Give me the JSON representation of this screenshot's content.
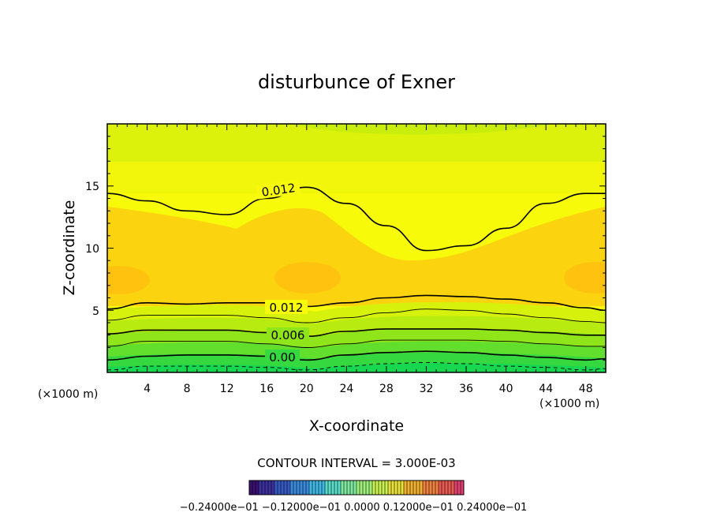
{
  "chart_data": {
    "type": "contour",
    "title": "disturbunce of Exner",
    "xlabel": "X-coordinate",
    "ylabel": "Z-coordinate",
    "x_unit": "(×1000 m)",
    "xlim": [
      0,
      50
    ],
    "ylim": [
      0,
      20
    ],
    "x_ticks": [
      "4",
      "8",
      "12",
      "16",
      "20",
      "24",
      "28",
      "32",
      "36",
      "40",
      "44",
      "48"
    ],
    "y_ticks": [
      "5",
      "10",
      "15"
    ],
    "contour_interval_text": "CONTOUR INTERVAL = 3.000E-03",
    "contour_labels": [
      "0.012",
      "0.012",
      "0.006",
      "0.00"
    ],
    "colorbar_labels_text": "−0.24000e−01    −0.12000e−01    0.0000    0.12000e−01    0.24000e−01",
    "contours": [
      {
        "level": 0.012,
        "x": [
          0,
          4,
          8,
          12,
          16,
          20,
          24,
          28,
          32,
          36,
          40,
          44,
          48,
          50
        ],
        "y": [
          14.4,
          13.8,
          13.0,
          12.7,
          14.0,
          14.9,
          13.6,
          11.8,
          9.8,
          10.2,
          11.6,
          13.6,
          14.4,
          14.4
        ]
      },
      {
        "level": 0.012,
        "x": [
          0,
          4,
          8,
          12,
          16,
          20,
          24,
          28,
          32,
          36,
          40,
          44,
          48,
          50
        ],
        "y": [
          5.1,
          5.6,
          5.5,
          5.6,
          5.6,
          5.3,
          5.6,
          6.0,
          6.2,
          6.1,
          5.9,
          5.6,
          5.2,
          5.0
        ]
      },
      {
        "level": 0.009,
        "x": [
          0,
          4,
          8,
          12,
          16,
          20,
          24,
          28,
          32,
          36,
          40,
          44,
          48,
          50
        ],
        "y": [
          4.2,
          4.6,
          4.6,
          4.6,
          4.4,
          4.0,
          4.4,
          4.8,
          5.1,
          5.0,
          4.7,
          4.4,
          4.1,
          4.0
        ]
      },
      {
        "level": 0.006,
        "x": [
          0,
          4,
          8,
          12,
          16,
          20,
          24,
          28,
          32,
          36,
          40,
          44,
          48,
          50
        ],
        "y": [
          3.1,
          3.4,
          3.4,
          3.4,
          3.2,
          2.9,
          3.3,
          3.5,
          3.5,
          3.5,
          3.4,
          3.2,
          3.0,
          3.0
        ]
      },
      {
        "level": 0.003,
        "x": [
          0,
          4,
          8,
          12,
          16,
          20,
          24,
          28,
          32,
          36,
          40,
          44,
          48,
          50
        ],
        "y": [
          2.1,
          2.5,
          2.5,
          2.5,
          2.3,
          2.0,
          2.3,
          2.6,
          2.6,
          2.6,
          2.5,
          2.3,
          2.1,
          2.1
        ]
      },
      {
        "level": 0.0,
        "x": [
          0,
          4,
          8,
          12,
          16,
          20,
          24,
          28,
          32,
          36,
          40,
          44,
          48,
          50
        ],
        "y": [
          1.0,
          1.3,
          1.4,
          1.4,
          1.3,
          1.0,
          1.4,
          1.6,
          1.7,
          1.6,
          1.4,
          1.2,
          1.0,
          1.1
        ]
      },
      {
        "level": -0.003,
        "x": [
          0,
          4,
          8,
          12,
          16,
          20,
          24,
          28,
          32,
          36,
          40,
          44,
          48,
          50
        ],
        "y": [
          0.2,
          0.5,
          0.5,
          0.5,
          0.4,
          0.2,
          0.5,
          0.7,
          0.8,
          0.7,
          0.5,
          0.4,
          0.2,
          0.3
        ]
      }
    ],
    "colors": {
      "background": "#f7fb0a",
      "band_top": "#ddf20b",
      "band_orange": "#fbd30f",
      "band_orange_core": "#ffc20e",
      "band_low": [
        "#d6f20c",
        "#b8ec10",
        "#8fe41a",
        "#62de2c",
        "#36d840",
        "#17d650"
      ],
      "colorbar": [
        "#3a1070",
        "#3b2f9c",
        "#3558c0",
        "#3a88d8",
        "#40b7e0",
        "#58dac8",
        "#7fe8a0",
        "#9ff07a",
        "#c8f04e",
        "#e8e03a",
        "#f0b030",
        "#f08040",
        "#e85850",
        "#e04070"
      ]
    }
  }
}
